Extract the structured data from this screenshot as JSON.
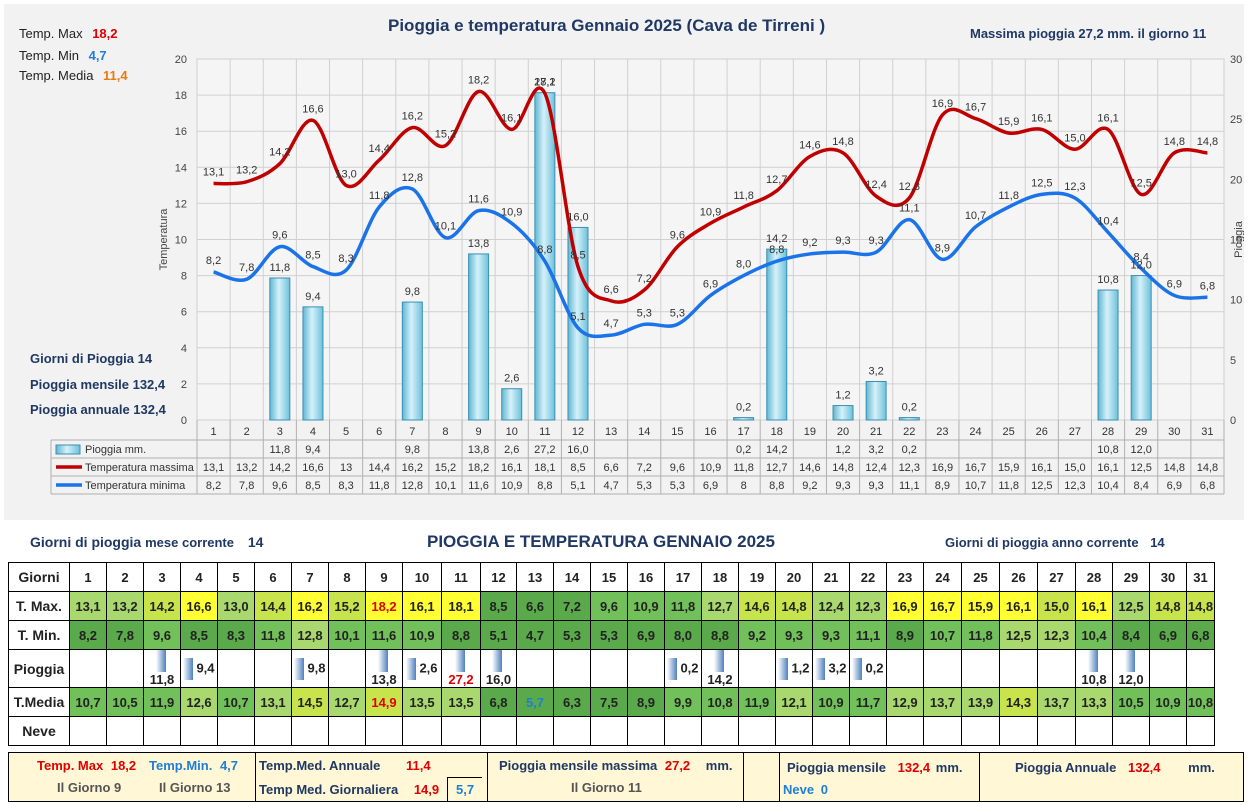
{
  "chart_data": {
    "type": "bar+line",
    "title": "Pioggia e temperatura Gennaio 2025 (Cava de Tirreni )",
    "ylabel": "Temperatura",
    "y2label": "Pioggia",
    "ylim": [
      0,
      20
    ],
    "y2lim": [
      0,
      30
    ],
    "yticks": [
      "0",
      "2",
      "4",
      "6",
      "8",
      "10",
      "12",
      "14",
      "16",
      "18",
      "20"
    ],
    "y2ticks": [
      "0",
      "5",
      "10",
      "15",
      "20",
      "25",
      "30"
    ],
    "categories": [
      "1",
      "2",
      "3",
      "4",
      "5",
      "6",
      "7",
      "8",
      "9",
      "10",
      "11",
      "12",
      "13",
      "14",
      "15",
      "16",
      "17",
      "18",
      "19",
      "20",
      "21",
      "22",
      "23",
      "24",
      "25",
      "26",
      "27",
      "28",
      "29",
      "30",
      "31"
    ],
    "series": [
      {
        "name": "Pioggia mm.",
        "kind": "bar",
        "axis": "right",
        "color": "#8fd3e8",
        "values": [
          null,
          null,
          11.8,
          9.4,
          null,
          null,
          9.8,
          null,
          13.8,
          2.6,
          27.2,
          16.0,
          null,
          null,
          null,
          null,
          0.2,
          14.2,
          null,
          1.2,
          3.2,
          0.2,
          null,
          null,
          null,
          null,
          null,
          10.8,
          12.0,
          null,
          null
        ],
        "labels": [
          "",
          "",
          "11,8",
          "9,4",
          "",
          "",
          "9,8",
          "",
          "13,8",
          "2,6",
          "27,2",
          "16,0",
          "",
          "",
          "",
          "",
          "0,2",
          "14,2",
          "",
          "1,2",
          "3,2",
          "0,2",
          "",
          "",
          "",
          "",
          "",
          "10,8",
          "12,0",
          "",
          ""
        ]
      },
      {
        "name": "Temperatura massima",
        "kind": "line",
        "axis": "left",
        "color": "#c00000",
        "values": [
          13.1,
          13.2,
          14.2,
          16.6,
          13.0,
          14.4,
          16.2,
          15.2,
          18.2,
          16.1,
          18.1,
          8.5,
          6.6,
          7.2,
          9.6,
          10.9,
          11.8,
          12.7,
          14.6,
          14.8,
          12.4,
          12.3,
          16.9,
          16.7,
          15.9,
          16.1,
          15.0,
          16.1,
          12.5,
          14.8,
          14.8
        ],
        "labels": [
          "13,1",
          "13,2",
          "14,2",
          "16,6",
          "13,0",
          "14,4",
          "16,2",
          "15,2",
          "18,2",
          "16,1",
          "18,1",
          "8,5",
          "6,6",
          "7,2",
          "9,6",
          "10,9",
          "11,8",
          "12,7",
          "14,6",
          "14,8",
          "12,4",
          "12,3",
          "16,9",
          "16,7",
          "15,9",
          "16,1",
          "15,0",
          "16,1",
          "12,5",
          "14,8",
          "14,8"
        ],
        "table_labels": [
          "13,1",
          "13,2",
          "14,2",
          "16,6",
          "13",
          "14,4",
          "16,2",
          "15,2",
          "18,2",
          "16,1",
          "18,1",
          "8,5",
          "6,6",
          "7,2",
          "9,6",
          "10,9",
          "11,8",
          "12,7",
          "14,6",
          "14,8",
          "12,4",
          "12,3",
          "16,9",
          "16,7",
          "15,9",
          "16,1",
          "15,0",
          "16,1",
          "12,5",
          "14,8",
          "14,8"
        ]
      },
      {
        "name": "Temperatura minima",
        "kind": "line",
        "axis": "left",
        "color": "#1a73e8",
        "values": [
          8.2,
          7.8,
          9.6,
          8.5,
          8.3,
          11.8,
          12.8,
          10.1,
          11.6,
          10.9,
          8.8,
          5.1,
          4.7,
          5.3,
          5.3,
          6.9,
          8.0,
          8.8,
          9.2,
          9.3,
          9.3,
          11.1,
          8.9,
          10.7,
          11.8,
          12.5,
          12.3,
          10.4,
          8.4,
          6.9,
          6.8
        ],
        "labels": [
          "8,2",
          "7,8",
          "9,6",
          "8,5",
          "8,3",
          "11,8",
          "12,8",
          "10,1",
          "11,6",
          "10,9",
          "8,8",
          "5,1",
          "4,7",
          "5,3",
          "5,3",
          "6,9",
          "8,0",
          "8,8",
          "9,2",
          "9,3",
          "9,3",
          "11,1",
          "8,9",
          "10,7",
          "11,8",
          "12,5",
          "12,3",
          "10,4",
          "8,4",
          "6,9",
          "6,8"
        ],
        "table_labels": [
          "8,2",
          "7,8",
          "9,6",
          "8,5",
          "8,3",
          "11,8",
          "12,8",
          "10,1",
          "11,6",
          "10,9",
          "8,8",
          "5,1",
          "4,7",
          "5,3",
          "5,3",
          "6,9",
          "8",
          "8,8",
          "9,2",
          "9,3",
          "9,3",
          "11,1",
          "8,9",
          "10,7",
          "11,8",
          "12,5",
          "12,3",
          "10,4",
          "8,4",
          "6,9",
          "6,8"
        ]
      }
    ],
    "grid": true
  },
  "summary_top": {
    "tmax_label": "Temp. Max",
    "tmax_value": "18,2",
    "tmin_label": "Temp. Min",
    "tmin_value": "4,7",
    "tmed_label": "Temp. Media",
    "tmed_value": "11,4",
    "massima_pioggia": "Massima pioggia  27,2 mm. il giorno  11",
    "giorni_pioggia": "Giorni di Pioggia  14",
    "pioggia_mensile": "Pioggia mensile  132,4",
    "pioggia_annuale": "Pioggia annuale  132,4"
  },
  "table": {
    "left_caption": "Giorni di pioggia",
    "left_caption_2": "mese corrente",
    "left_value": "14",
    "title": "PIOGGIA E TEMPERATURA GENNAIO 2025",
    "right_caption": "Giorni di pioggia anno corrente",
    "right_value": "14",
    "row_labels": [
      "Giorni",
      "T. Max.",
      "T. Min.",
      "Pioggia",
      "T.Media",
      "Neve"
    ],
    "tmax": [
      "13,1",
      "13,2",
      "14,2",
      "16,6",
      "13,0",
      "14,4",
      "16,2",
      "15,2",
      "18,2",
      "16,1",
      "18,1",
      "8,5",
      "6,6",
      "7,2",
      "9,6",
      "10,9",
      "11,8",
      "12,7",
      "14,6",
      "14,8",
      "12,4",
      "12,3",
      "16,9",
      "16,7",
      "15,9",
      "16,1",
      "15,0",
      "16,1",
      "12,5",
      "14,8",
      "14,8"
    ],
    "tmin": [
      "8,2",
      "7,8",
      "9,6",
      "8,5",
      "8,3",
      "11,8",
      "12,8",
      "10,1",
      "11,6",
      "10,9",
      "8,8",
      "5,1",
      "4,7",
      "5,3",
      "5,3",
      "6,9",
      "8,0",
      "8,8",
      "9,2",
      "9,3",
      "9,3",
      "11,1",
      "8,9",
      "10,7",
      "11,8",
      "12,5",
      "12,3",
      "10,4",
      "8,4",
      "6,9",
      "6,8"
    ],
    "rain": [
      "",
      "",
      "11,8",
      "9,4",
      "",
      "",
      "9,8",
      "",
      "13,8",
      "2,6",
      "27,2",
      "16,0",
      "",
      "",
      "",
      "",
      "0,2",
      "14,2",
      "",
      "1,2",
      "3,2",
      "0,2",
      "",
      "",
      "",
      "",
      "",
      "10,8",
      "12,0",
      "",
      ""
    ],
    "tmedia": [
      "10,7",
      "10,5",
      "11,9",
      "12,6",
      "10,7",
      "13,1",
      "14,5",
      "12,7",
      "14,9",
      "13,5",
      "13,5",
      "6,8",
      "5,7",
      "6,3",
      "7,5",
      "8,9",
      "9,9",
      "10,8",
      "11,9",
      "12,1",
      "10,9",
      "11,7",
      "12,9",
      "13,7",
      "13,9",
      "14,3",
      "13,7",
      "13,3",
      "10,5",
      "10,9",
      "10,8"
    ]
  },
  "footer": {
    "tmax_label": "Temp. Max",
    "tmax_value": "18,2",
    "tmin_label": "Temp.Min.",
    "tmin_value": "4,7",
    "tmax_day": "Il Giorno  9",
    "tmin_day": "Il Giorno 13",
    "tmed_annuale_label": "Temp.Med. Annuale",
    "tmed_annuale_value": "11,4",
    "tmed_giornaliera_label": "Temp Med. Giornaliera",
    "tmed_giorn_max": "14,9",
    "tmed_giorn_min": "5,7",
    "pioggia_max_label": "Pioggia mensile massima",
    "pioggia_max_value": "27,2",
    "pioggia_max_unit": "mm.",
    "pioggia_max_day": "Il Giorno 11",
    "pioggia_mensile_label": "Pioggia mensile",
    "pioggia_mensile_value": "132,4",
    "pioggia_mensile_unit": "mm.",
    "neve_label": "Neve",
    "neve_value": "0",
    "pioggia_annuale_label": "Pioggia Annuale",
    "pioggia_annuale_value": "132,4",
    "pioggia_annuale_unit": "mm."
  }
}
